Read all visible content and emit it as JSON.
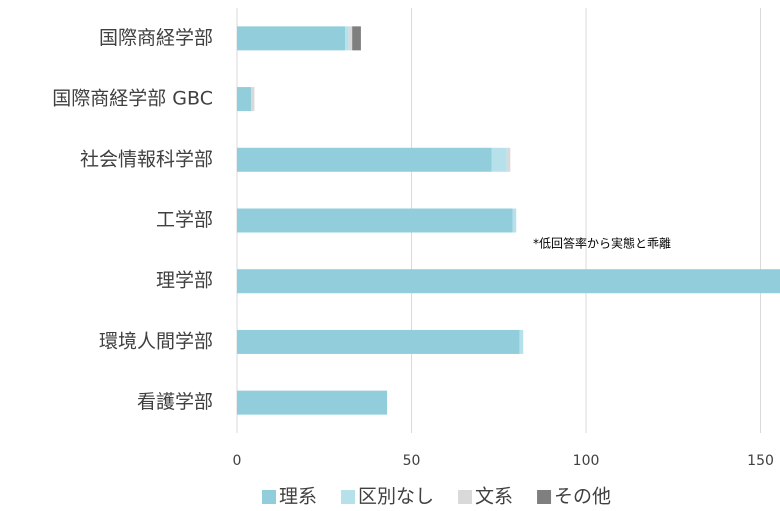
{
  "chart_data": {
    "type": "stacked_barh",
    "categories": [
      "国際商経学部",
      "国際商経学部 GBC",
      "社会情報科学部",
      "工学部",
      "理学部",
      "環境人間学部",
      "看護学部"
    ],
    "series": [
      {
        "name": "理系",
        "color": "#92cddc",
        "values": [
          31,
          4,
          73,
          79,
          160,
          81,
          43
        ]
      },
      {
        "name": "区別なし",
        "color": "#b7e1ea",
        "values": [
          1,
          0,
          4.3,
          1,
          0,
          1,
          0
        ]
      },
      {
        "name": "文系",
        "color": "#d9d9d9",
        "values": [
          1,
          1,
          1,
          0,
          0,
          0,
          0
        ]
      },
      {
        "name": "その他",
        "color": "#7f7f7f",
        "values": [
          2.5,
          0,
          0,
          0,
          0,
          0,
          0
        ]
      }
    ],
    "annotation": "*低回答率から実態と乖離",
    "xlim": [
      0,
      155
    ],
    "xticks": [
      0,
      50,
      100,
      150
    ],
    "grid": true,
    "legend": "bottom"
  }
}
